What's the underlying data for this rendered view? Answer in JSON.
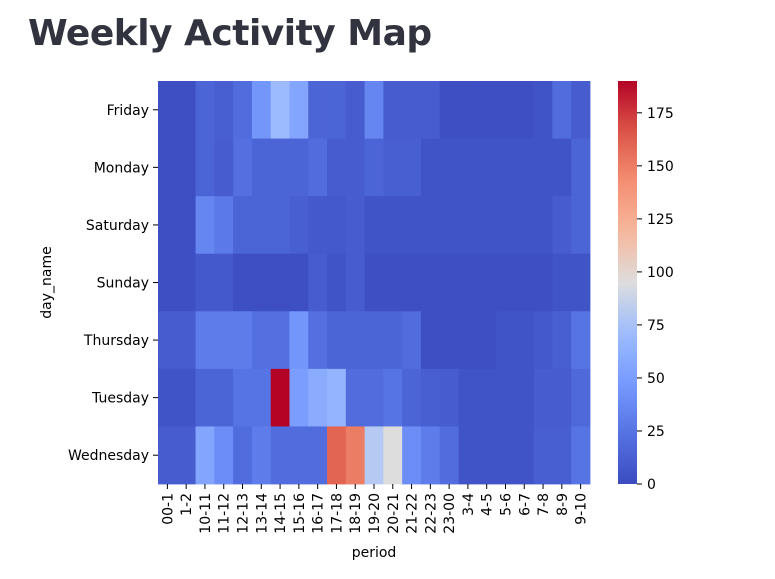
{
  "page": {
    "title": "Weekly Activity Map"
  },
  "chart_data": {
    "type": "heatmap",
    "title": "",
    "xlabel": "period",
    "ylabel": "day_name",
    "x_categories": [
      "00-1",
      "1-2",
      "10-11",
      "11-12",
      "12-13",
      "13-14",
      "14-15",
      "15-16",
      "16-17",
      "17-18",
      "18-19",
      "19-20",
      "20-21",
      "21-22",
      "22-23",
      "23-00",
      "3-4",
      "4-5",
      "5-6",
      "6-7",
      "7-8",
      "8-9",
      "9-10"
    ],
    "y_categories": [
      "Friday",
      "Monday",
      "Saturday",
      "Sunday",
      "Thursday",
      "Tuesday",
      "Wednesday"
    ],
    "values": [
      [
        2,
        2,
        15,
        12,
        20,
        45,
        70,
        55,
        15,
        15,
        10,
        35,
        10,
        10,
        10,
        2,
        2,
        2,
        2,
        2,
        5,
        20,
        10
      ],
      [
        2,
        2,
        15,
        10,
        22,
        15,
        15,
        15,
        20,
        10,
        10,
        15,
        12,
        12,
        5,
        5,
        5,
        5,
        5,
        5,
        5,
        5,
        15
      ],
      [
        2,
        2,
        35,
        28,
        15,
        15,
        15,
        12,
        8,
        8,
        10,
        5,
        5,
        5,
        5,
        5,
        5,
        5,
        5,
        5,
        5,
        10,
        15
      ],
      [
        2,
        2,
        8,
        8,
        2,
        2,
        2,
        2,
        10,
        5,
        10,
        2,
        2,
        2,
        2,
        2,
        2,
        2,
        2,
        2,
        2,
        5,
        5
      ],
      [
        10,
        10,
        30,
        30,
        30,
        22,
        22,
        45,
        22,
        15,
        15,
        15,
        15,
        20,
        2,
        2,
        2,
        2,
        5,
        5,
        8,
        12,
        25
      ],
      [
        5,
        5,
        15,
        15,
        25,
        25,
        190,
        50,
        60,
        65,
        20,
        20,
        25,
        15,
        12,
        10,
        5,
        5,
        5,
        5,
        10,
        10,
        18
      ],
      [
        10,
        10,
        55,
        40,
        20,
        30,
        20,
        20,
        20,
        160,
        150,
        80,
        95,
        40,
        30,
        20,
        5,
        5,
        5,
        5,
        12,
        12,
        25
      ]
    ],
    "colorbar": {
      "min": 0,
      "max": 190,
      "ticks": [
        0,
        25,
        50,
        75,
        100,
        125,
        150,
        175
      ]
    },
    "colormap": "coolwarm",
    "grid": false
  }
}
